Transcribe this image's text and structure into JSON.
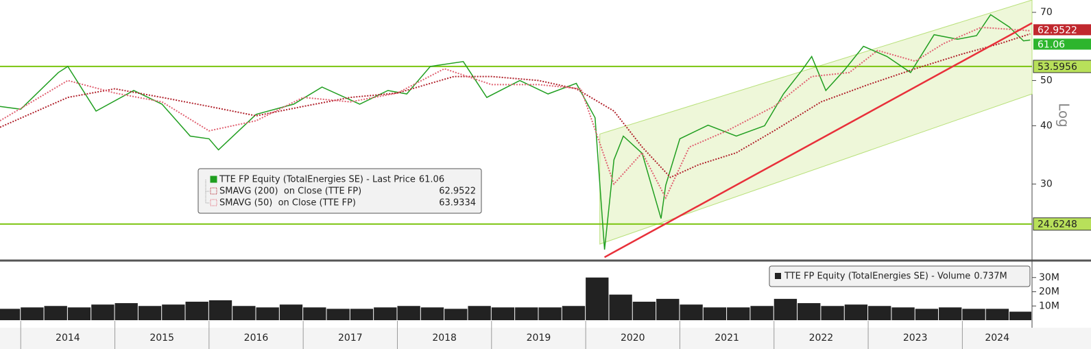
{
  "chart_data": [
    {
      "type": "line",
      "y_scale": "log",
      "y_axis_label": "Log",
      "xlim": [
        2013.78,
        2024.74
      ],
      "ylim": [
        20.7,
        74.4
      ],
      "yticks": [
        30,
        40,
        50,
        70
      ],
      "xticks": [
        {
          "value": 2014,
          "label": "2014"
        },
        {
          "value": 2015,
          "label": "2015"
        },
        {
          "value": 2016,
          "label": "2016"
        },
        {
          "value": 2017,
          "label": "2017"
        },
        {
          "value": 2018,
          "label": "2018"
        },
        {
          "value": 2019,
          "label": "2019"
        },
        {
          "value": 2020,
          "label": "2020"
        },
        {
          "value": 2021,
          "label": "2021"
        },
        {
          "value": 2022,
          "label": "2022"
        },
        {
          "value": 2023,
          "label": "2023"
        },
        {
          "value": 2024,
          "label": "2024"
        }
      ],
      "series": [
        {
          "name": "TTE FP Equity (TotalEnergies SE) - Last Price",
          "color": "#1f9e1f",
          "tag_color": "#2db52d",
          "last_value": 61.06,
          "x": [
            2013.78,
            2014.0,
            2014.4,
            2014.5,
            2014.8,
            2015.2,
            2015.5,
            2015.8,
            2016.0,
            2016.1,
            2016.5,
            2016.9,
            2017.2,
            2017.6,
            2017.9,
            2018.1,
            2018.35,
            2018.7,
            2018.95,
            2019.3,
            2019.6,
            2019.9,
            2020.1,
            2020.2,
            2020.3,
            2020.4,
            2020.6,
            2020.8,
            2020.85,
            2021.0,
            2021.3,
            2021.6,
            2021.9,
            2022.1,
            2022.3,
            2022.4,
            2022.55,
            2022.75,
            2022.95,
            2023.2,
            2023.45,
            2023.7,
            2023.95,
            2024.15,
            2024.3,
            2024.5,
            2024.65,
            2024.72
          ],
          "values": [
            44,
            43.4,
            52,
            53.6,
            43,
            47.6,
            44.5,
            38,
            37.5,
            35.5,
            42.3,
            44.5,
            48.4,
            44.5,
            47.6,
            46.8,
            53.6,
            54.9,
            46,
            50,
            46.8,
            49.3,
            41.6,
            21.7,
            33.8,
            38,
            34.9,
            25.3,
            29.8,
            37.5,
            40.1,
            38,
            40,
            46.8,
            52.7,
            56.3,
            47.6,
            52.7,
            59.2,
            56.3,
            52,
            62.7,
            61.3,
            62.4,
            69.2,
            65.1,
            60.8,
            61.06
          ]
        },
        {
          "name": "SMAVG (200)  on Close (TTE FP)",
          "color": "#b0202a",
          "tag_color": "#c0282e",
          "last_value": 62.9522,
          "x": [
            2013.78,
            2014.5,
            2015.0,
            2015.5,
            2016.0,
            2016.5,
            2017.0,
            2017.5,
            2018.0,
            2018.6,
            2019.0,
            2019.5,
            2019.9,
            2020.3,
            2020.6,
            2020.9,
            2021.2,
            2021.6,
            2022.0,
            2022.5,
            2023.0,
            2023.5,
            2024.0,
            2024.4,
            2024.72
          ],
          "values": [
            39.7,
            46,
            48,
            46,
            44,
            42,
            44,
            46,
            47,
            51,
            51,
            50,
            48,
            43,
            36,
            31,
            33,
            35,
            39,
            45,
            49,
            53,
            57,
            60,
            62.9522
          ]
        },
        {
          "name": "SMAVG (50)  on Close (TTE FP)",
          "color": "#e06070",
          "last_value": 63.9334,
          "x": [
            2013.78,
            2014.5,
            2015.0,
            2015.5,
            2016.0,
            2016.5,
            2017.0,
            2017.5,
            2018.0,
            2018.5,
            2019.0,
            2019.5,
            2019.95,
            2020.3,
            2020.6,
            2020.85,
            2021.1,
            2021.5,
            2022.0,
            2022.4,
            2022.8,
            2023.1,
            2023.5,
            2023.8,
            2024.2,
            2024.72
          ],
          "values": [
            41,
            50,
            47,
            45,
            39,
            41,
            46,
            45,
            47,
            53,
            49,
            49,
            48,
            30,
            35,
            28,
            36,
            39,
            44,
            51,
            52,
            58,
            55,
            60,
            65,
            63.9334
          ]
        }
      ],
      "levels": [
        {
          "value": 53.5956,
          "color": "#7ac40e"
        },
        {
          "value": 24.6248,
          "color": "#7ac40e"
        }
      ],
      "channel": {
        "x": [
          2020.15,
          2024.74
        ],
        "upper": [
          38.4,
          74.4
        ],
        "lower": [
          22.3,
          46.8
        ],
        "color": "#eef7d9"
      },
      "trend_line": {
        "x": [
          2020.2,
          2024.74
        ],
        "values": [
          20.9,
          66.4
        ],
        "color": "#e8303a"
      }
    },
    {
      "type": "bar",
      "legend_name": "TTE FP Equity (TotalEnergies SE) - Volume",
      "legend_value": "0.737M",
      "ylim": [
        0,
        40
      ],
      "yticks": [
        {
          "value": 10,
          "label": "10M"
        },
        {
          "value": 20,
          "label": "20M"
        },
        {
          "value": 30,
          "label": "30M"
        }
      ],
      "color": "#222222",
      "x": [
        2013.875,
        2014.125,
        2014.375,
        2014.625,
        2014.875,
        2015.125,
        2015.375,
        2015.625,
        2015.875,
        2016.125,
        2016.375,
        2016.625,
        2016.875,
        2017.125,
        2017.375,
        2017.625,
        2017.875,
        2018.125,
        2018.375,
        2018.625,
        2018.875,
        2019.125,
        2019.375,
        2019.625,
        2019.875,
        2020.125,
        2020.375,
        2020.625,
        2020.875,
        2021.125,
        2021.375,
        2021.625,
        2021.875,
        2022.125,
        2022.375,
        2022.625,
        2022.875,
        2023.125,
        2023.375,
        2023.625,
        2023.875,
        2024.125,
        2024.375,
        2024.625
      ],
      "values": [
        8,
        9,
        10,
        9,
        11,
        12,
        10,
        11,
        13,
        14,
        10,
        9,
        11,
        9,
        8,
        8,
        9,
        10,
        9,
        8,
        10,
        9,
        9,
        9,
        10,
        30,
        18,
        13,
        15,
        11,
        9,
        9,
        10,
        15,
        12,
        10,
        11,
        10,
        9,
        8,
        9,
        8,
        8,
        6
      ]
    }
  ]
}
